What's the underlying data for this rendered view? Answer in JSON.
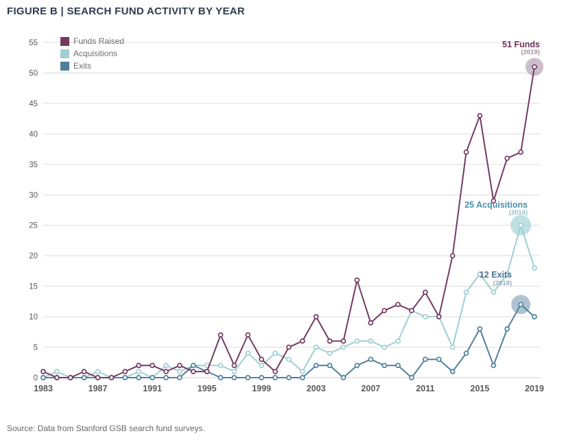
{
  "header": {
    "title": "FIGURE B | SEARCH FUND ACTIVITY BY YEAR"
  },
  "source": {
    "text": "Source: Data from Stanford GSB search fund surveys."
  },
  "chart_data": {
    "type": "line",
    "title": "FIGURE B | SEARCH FUND ACTIVITY BY YEAR",
    "xlabel": "",
    "ylabel": "",
    "ylim": [
      0,
      55
    ],
    "ytick_step": 5,
    "ytick_labels": [
      "0",
      "5",
      "10",
      "15",
      "20",
      "25",
      "30",
      "35",
      "40",
      "45",
      "50",
      "55"
    ],
    "x_tick_labels": [
      "1983",
      "1987",
      "1991",
      "1995",
      "1999",
      "2003",
      "2007",
      "2011",
      "2015",
      "2019"
    ],
    "grid": "horizontal",
    "legend_position": "top-left",
    "years": [
      1983,
      1984,
      1985,
      1986,
      1987,
      1988,
      1989,
      1990,
      1991,
      1992,
      1993,
      1994,
      1995,
      1996,
      1997,
      1998,
      1999,
      2000,
      2001,
      2002,
      2003,
      2004,
      2005,
      2006,
      2007,
      2008,
      2009,
      2010,
      2011,
      2012,
      2013,
      2014,
      2015,
      2016,
      2017,
      2018,
      2019
    ],
    "series": [
      {
        "name": "Funds Raised",
        "color": "#733A61",
        "values": [
          1,
          0,
          0,
          1,
          0,
          0,
          1,
          2,
          2,
          1,
          2,
          1,
          1,
          7,
          2,
          7,
          3,
          1,
          5,
          6,
          10,
          6,
          6,
          16,
          9,
          11,
          12,
          11,
          14,
          10,
          20,
          37,
          43,
          29,
          36,
          37,
          51
        ]
      },
      {
        "name": "Acquisitions",
        "color": "#9FCFD3",
        "values": [
          0,
          1,
          0,
          0,
          1,
          0,
          0,
          1,
          0,
          2,
          1,
          2,
          2,
          2,
          1,
          4,
          2,
          4,
          3,
          1,
          5,
          4,
          5,
          6,
          6,
          5,
          6,
          11,
          10,
          10,
          5,
          14,
          17,
          14,
          17,
          25,
          18
        ]
      },
      {
        "name": "Exits",
        "color": "#50809B",
        "values": [
          0,
          0,
          0,
          0,
          0,
          0,
          0,
          0,
          0,
          0,
          0,
          2,
          1,
          0,
          0,
          0,
          0,
          0,
          0,
          0,
          2,
          2,
          0,
          2,
          3,
          2,
          2,
          0,
          3,
          3,
          1,
          4,
          8,
          2,
          8,
          12,
          10
        ]
      }
    ],
    "annotations": [
      {
        "label": "51 Funds",
        "sub": "(2019)",
        "series_index": 0,
        "year": 2019,
        "value": 51,
        "text_color": "#6E3459",
        "sub_color": "#A58BA0",
        "halo_color": "#A286A0",
        "halo_opacity": 0.55
      },
      {
        "label": "25 Acquisitions",
        "sub": "(2018)",
        "series_index": 1,
        "year": 2018,
        "value": 25,
        "text_color": "#4690AB",
        "sub_color": "#93BECB",
        "halo_color": "#B5DBDE",
        "halo_opacity": 0.85
      },
      {
        "label": "12 Exits",
        "sub": "(2018)",
        "series_index": 2,
        "year": 2018,
        "value": 12,
        "text_color": "#4A7390",
        "sub_color": "#92A9BC",
        "halo_color": "#84A2B9",
        "halo_opacity": 0.65
      }
    ],
    "colors": {
      "grid_line": "#dcdcdc",
      "axis_line": "#d5cec2",
      "tick_text": "#58585b",
      "title_text": "#2d3b4d",
      "source_text": "#666666"
    }
  }
}
